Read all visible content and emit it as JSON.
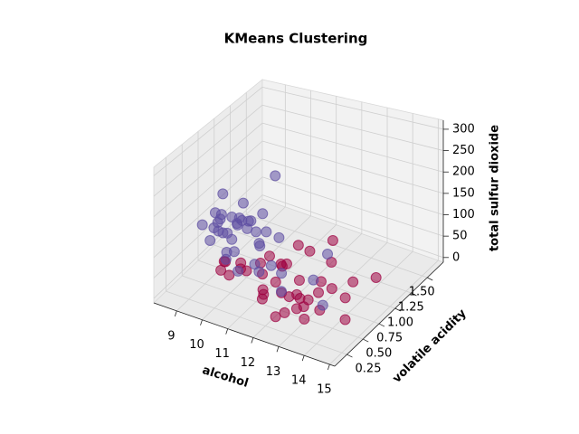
{
  "chart_data": {
    "type": "scatter3d",
    "title": "KMeans Clustering",
    "xlabel": "alcohol",
    "ylabel": "volatile acidity",
    "zlabel": "total sulfur dioxide",
    "xlim": [
      8.1,
      15.2
    ],
    "ylim": [
      0.06,
      1.75
    ],
    "zlim": [
      -11,
      321
    ],
    "xticks": [
      9,
      10,
      11,
      12,
      13,
      14,
      15
    ],
    "yticks": [
      0.25,
      {
        "value": 0.5,
        "label": "0.50"
      },
      0.75,
      {
        "value": 1.0,
        "label": "1.00"
      },
      1.25,
      {
        "value": 1.5,
        "label": "1.50"
      }
    ],
    "zticks": [
      0,
      50,
      100,
      150,
      200,
      250,
      300
    ],
    "grid": true,
    "series": [
      {
        "color": "#5e4fa2",
        "x": [
          9.4,
          9.8,
          10.0,
          9.2,
          9.6,
          10.4,
          9.9,
          10.2,
          9.5,
          9.1,
          10.8,
          11.0,
          9.7,
          10.5,
          9.3,
          10.1,
          11.2,
          9.8,
          10.6,
          9.5,
          10.9,
          11.5,
          9.4,
          10.0,
          12.0,
          10.3,
          9.6,
          11.8,
          12.5,
          13.0,
          10.7,
          9.9,
          11.0,
          14.0,
          12.8,
          9.2,
          10.5,
          11.4,
          9.8,
          10.2
        ],
        "y": [
          0.55,
          0.6,
          0.45,
          0.7,
          0.5,
          0.4,
          0.65,
          0.35,
          0.8,
          0.62,
          0.3,
          0.55,
          0.9,
          0.48,
          0.58,
          0.72,
          0.4,
          0.52,
          0.66,
          0.44,
          0.6,
          0.35,
          0.3,
          1.0,
          0.5,
          0.58,
          0.68,
          0.42,
          0.3,
          0.6,
          0.78,
          0.4,
          0.8,
          0.35,
          0.9,
          0.5,
          0.62,
          0.7,
          0.46,
          0.56
        ],
        "z": [
          120,
          100,
          140,
          90,
          160,
          110,
          130,
          95,
          105,
          150,
          85,
          120,
          100,
          175,
          135,
          115,
          95,
          80,
          125,
          145,
          105,
          90,
          170,
          110,
          75,
          200,
          140,
          100,
          70,
          65,
          110,
          190,
          248,
          60,
          80,
          100,
          155,
          120,
          230,
          165
        ]
      },
      {
        "color": "#9e0142",
        "x": [
          11.5,
          12.0,
          12.5,
          11.0,
          13.0,
          12.2,
          11.8,
          10.5,
          13.5,
          12.8,
          11.2,
          10.8,
          12.4,
          13.2,
          11.6,
          9.8,
          10.2,
          12.6,
          14.0,
          11.4,
          12.9,
          10.9,
          13.8,
          11.9,
          12.3,
          9.5,
          10.0,
          13.4,
          14.5,
          11.1,
          12.7,
          10.6,
          12.1,
          13.1,
          11.7,
          9.9,
          14.2,
          12.0,
          10.4,
          13.6
        ],
        "y": [
          0.4,
          0.5,
          0.35,
          0.6,
          0.45,
          0.7,
          0.3,
          0.55,
          0.5,
          0.8,
          0.9,
          0.65,
          0.25,
          0.6,
          1.1,
          0.5,
          0.4,
          0.55,
          0.7,
          0.75,
          0.38,
          1.2,
          0.9,
          0.45,
          0.62,
          0.6,
          0.35,
          0.3,
          0.5,
          0.85,
          1.0,
          0.42,
          0.58,
          0.48,
          0.33,
          0.7,
          1.1,
          1.3,
          0.95,
          0.65
        ],
        "z": [
          20,
          30,
          15,
          40,
          25,
          35,
          50,
          45,
          20,
          30,
          25,
          55,
          18,
          40,
          35,
          60,
          50,
          22,
          30,
          45,
          28,
          20,
          35,
          60,
          15,
          40,
          65,
          25,
          18,
          30,
          45,
          70,
          12,
          38,
          55,
          30,
          25,
          40,
          20,
          50
        ]
      }
    ]
  }
}
